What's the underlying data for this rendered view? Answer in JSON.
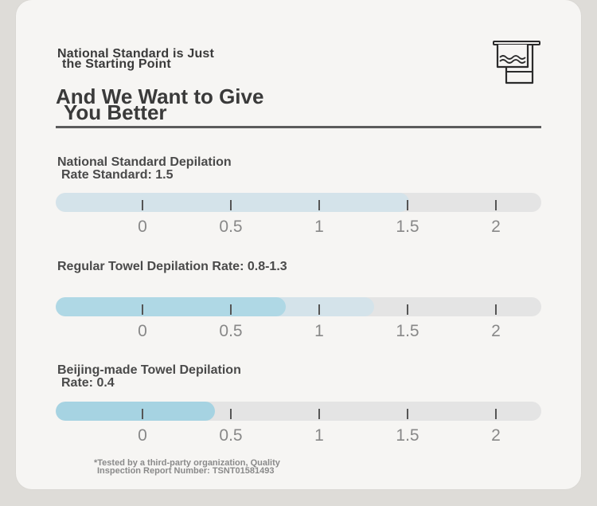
{
  "header": {
    "subtitle_line1": "National Standard is Just",
    "subtitle_line2": "the Starting Point",
    "headline_line1": "And We Want to Give",
    "headline_line2": "You Better"
  },
  "icon": {
    "name": "towel-icon"
  },
  "scale": {
    "min": 0,
    "max": 2,
    "ticks": [
      0,
      0.5,
      1,
      1.5,
      2
    ],
    "tick_labels": [
      "0",
      "0.5",
      "1",
      "1.5",
      "2"
    ]
  },
  "sections": [
    {
      "label_line1": "National Standard Depilation",
      "label_line2": "Rate Standard: 1.5",
      "fill_to": 1.5,
      "fill_color": "#d4e3ea"
    },
    {
      "label_line1": "Regular Towel Depilation Rate: 0.8-1.3",
      "label_line2": "",
      "fill_to": 1.3,
      "fill_strong_to": 0.8,
      "fill_color": "#d4e3ea",
      "fill_strong_color": "#afd8e5"
    },
    {
      "label_line1": "Beijing-made Towel Depilation",
      "label_line2": "Rate: 0.4",
      "fill_to": 0.4,
      "fill_color": "#a6d3e2"
    }
  ],
  "footnote": {
    "line1": "*Tested by a third-party organization, Quality",
    "line2": "Inspection Report Number: TSNT01581493"
  },
  "colors": {
    "background": "#dedcd8",
    "card": "#f6f5f3",
    "track": "#e4e4e4",
    "text_dark": "#3a3a3a",
    "tick_label": "#888888"
  }
}
